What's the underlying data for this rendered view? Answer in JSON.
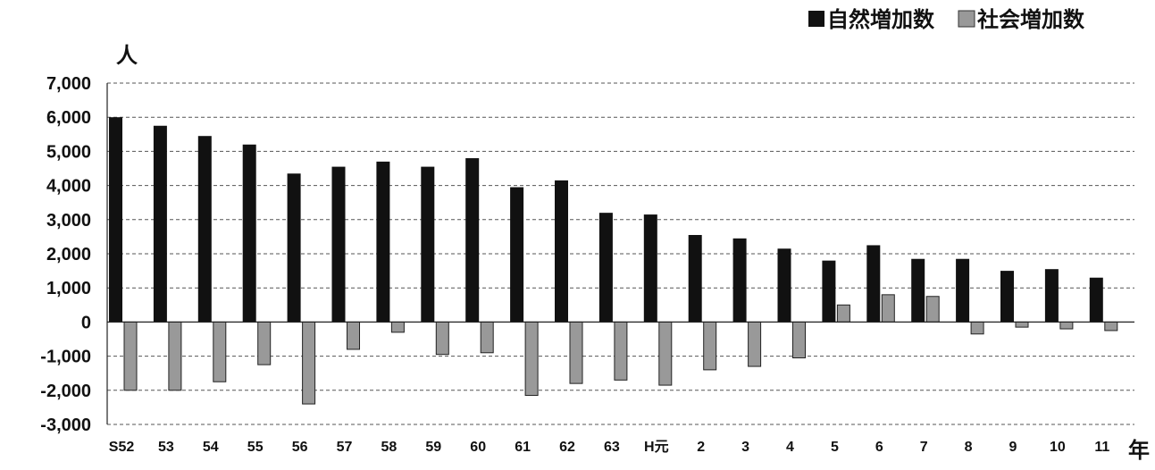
{
  "chart_data": {
    "type": "bar",
    "categories": [
      "S52",
      "53",
      "54",
      "55",
      "56",
      "57",
      "58",
      "59",
      "60",
      "61",
      "62",
      "63",
      "H元",
      "2",
      "3",
      "4",
      "5",
      "6",
      "7",
      "8",
      "9",
      "10",
      "11"
    ],
    "series": [
      {
        "name": "自然増加数",
        "color": "#111111",
        "values": [
          6000,
          5750,
          5450,
          5200,
          4350,
          4550,
          4700,
          4550,
          4800,
          3950,
          4150,
          3200,
          3150,
          2550,
          2450,
          2150,
          1800,
          2250,
          1850,
          1850,
          1500,
          1550,
          1300
        ]
      },
      {
        "name": "社会増加数",
        "color": "#999999",
        "values": [
          -2000,
          -2000,
          -1750,
          -1250,
          -2400,
          -800,
          -300,
          -950,
          -900,
          -2150,
          -1800,
          -1700,
          -1850,
          -1400,
          -1300,
          -1050,
          500,
          800,
          750,
          -350,
          -150,
          -200,
          -250
        ]
      }
    ],
    "ylim": [
      -3000,
      7000
    ],
    "yticks": [
      "7,000",
      "6,000",
      "5,000",
      "4,000",
      "3,000",
      "2,000",
      "1,000",
      "0",
      "-1,000",
      "-2,000",
      "-3,000"
    ],
    "ylabel": "人",
    "xlabel": "年",
    "grid": true,
    "legend_position": "top-right"
  }
}
